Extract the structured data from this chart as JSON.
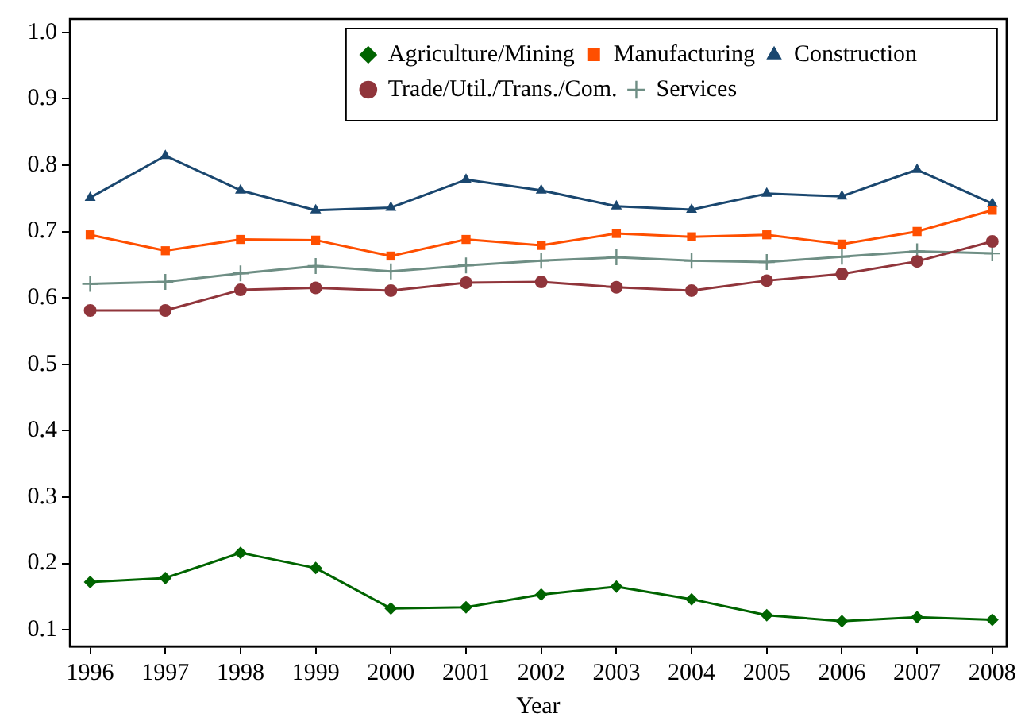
{
  "chart_data": {
    "type": "line",
    "xlabel": "Year",
    "x": [
      1996,
      1997,
      1998,
      1999,
      2000,
      2001,
      2002,
      2003,
      2004,
      2005,
      2006,
      2007,
      2008
    ],
    "series": [
      {
        "name": "Agriculture/Mining",
        "color": "#006400",
        "marker": "diamond",
        "values": [
          0.172,
          0.178,
          0.216,
          0.193,
          0.132,
          0.134,
          0.153,
          0.165,
          0.146,
          0.122,
          0.113,
          0.119,
          0.115
        ]
      },
      {
        "name": "Manufacturing",
        "color": "#ff4f00",
        "marker": "square",
        "values": [
          0.695,
          0.671,
          0.688,
          0.687,
          0.663,
          0.688,
          0.679,
          0.697,
          0.692,
          0.695,
          0.681,
          0.7,
          0.732
        ]
      },
      {
        "name": "Construction",
        "color": "#1a476f",
        "marker": "triangle",
        "values": [
          0.751,
          0.814,
          0.762,
          0.732,
          0.736,
          0.778,
          0.762,
          0.738,
          0.733,
          0.757,
          0.753,
          0.793,
          0.742
        ]
      },
      {
        "name": "Trade/Util./Trans./Com.",
        "color": "#90353b",
        "marker": "circle",
        "values": [
          0.581,
          0.581,
          0.612,
          0.615,
          0.611,
          0.623,
          0.624,
          0.616,
          0.611,
          0.626,
          0.636,
          0.655,
          0.685
        ]
      },
      {
        "name": "Services",
        "color": "#6e8e84",
        "marker": "cross",
        "values": [
          0.621,
          0.624,
          0.637,
          0.648,
          0.64,
          0.649,
          0.656,
          0.661,
          0.656,
          0.654,
          0.662,
          0.67,
          0.667
        ]
      }
    ],
    "xlim": [
      1995.73,
      2008.19
    ],
    "xticks": [
      1996,
      1997,
      1998,
      1999,
      2000,
      2001,
      2002,
      2003,
      2004,
      2005,
      2006,
      2007,
      2008
    ],
    "ylim": [
      0.075,
      1.02
    ],
    "yticks": [
      0.1,
      0.2,
      0.3,
      0.4,
      0.5,
      0.6,
      0.7,
      0.8,
      0.9,
      {
        "value": 1,
        "label": "1.0"
      }
    ],
    "grid": false,
    "legend": "top right",
    "line_style": "solid"
  }
}
